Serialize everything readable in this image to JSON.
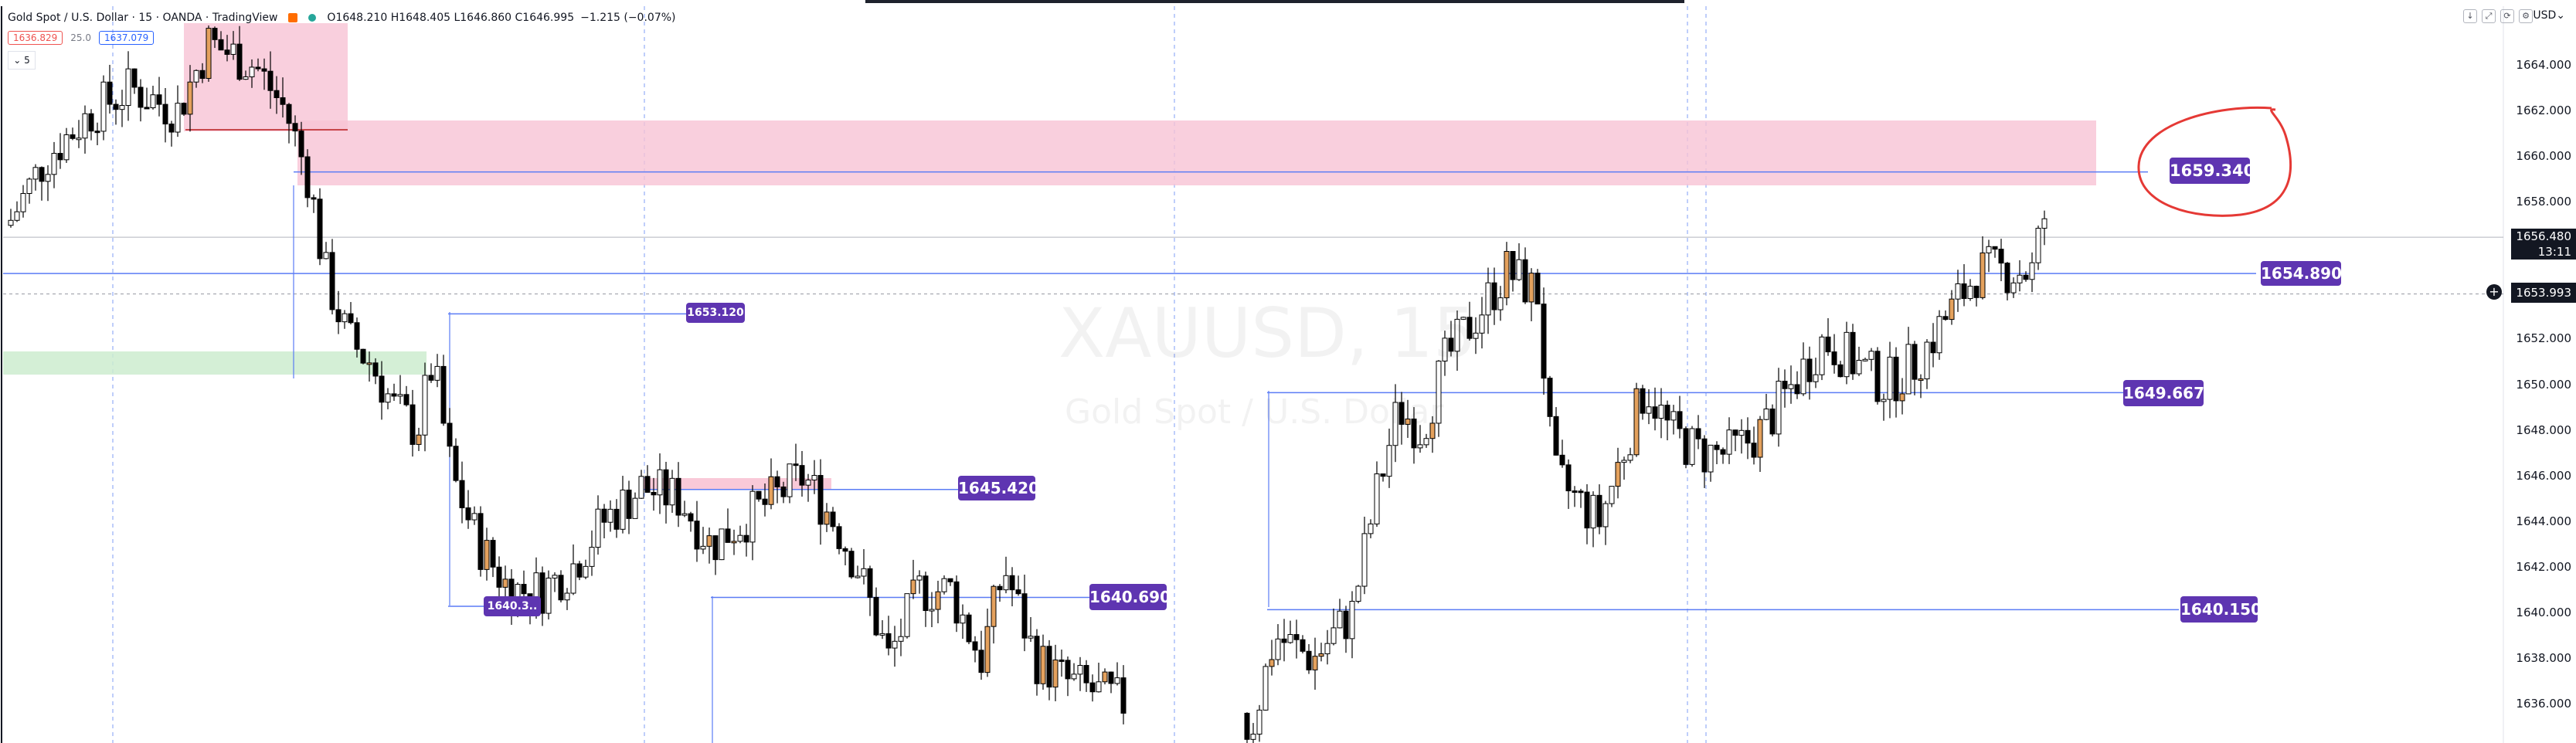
{
  "header": {
    "symbol": "Gold Spot / U.S. Dollar · 15 · OANDA · TradingView",
    "ohlc": "O1648.210 H1648.405 L1646.860 C1646.995",
    "change": "−1.215 (−0.07%)",
    "sell_price": "1636.829",
    "spread": "25.0",
    "buy_price": "1637.079",
    "collapse_label": "⌄ 5",
    "currency": "USD⌄",
    "icons": [
      "arrow-down-icon",
      "expand-icon",
      "refresh-icon",
      "settings-icon"
    ]
  },
  "watermark": {
    "title": "XAUUSD, 15",
    "subtitle": "Gold Spot / U.S. Dollar"
  },
  "price_axis": {
    "ticks": [
      "1664.000",
      "1662.000",
      "1660.000",
      "1658.000",
      "1656.000",
      "1654.000",
      "1652.000",
      "1650.000",
      "1648.000",
      "1646.000",
      "1644.000",
      "1642.000",
      "1640.000",
      "1638.000",
      "1636.000"
    ],
    "current_price": "1656.480",
    "countdown": "13:11",
    "crosshair_price": "1653.993"
  },
  "levels": [
    {
      "label": "1659.340",
      "price": 1659.34
    },
    {
      "label": "1654.890",
      "price": 1654.89
    },
    {
      "label": "1653.120",
      "price": 1653.12
    },
    {
      "label": "1649.667",
      "price": 1649.667
    },
    {
      "label": "1645.420",
      "price": 1645.42
    },
    {
      "label": "1640.690",
      "price": 1640.69
    },
    {
      "label": "1640.150",
      "price": 1640.15
    },
    {
      "label": "1640.3..",
      "price": 1640.3
    }
  ],
  "colors": {
    "up": "#ffffff",
    "down": "#000000",
    "highlight": "#e4a15d",
    "level_line": "#5b7cf5",
    "label_bg": "#5e35b1",
    "supply_zone": "#f8c3d4",
    "demand_zone": "#cdeccf",
    "circle": "#e53935"
  },
  "chart_data": {
    "type": "candlestick",
    "symbol": "XAUUSD",
    "interval": "15",
    "ylim": [
      1635.0,
      1665.0
    ],
    "grid": false
  }
}
